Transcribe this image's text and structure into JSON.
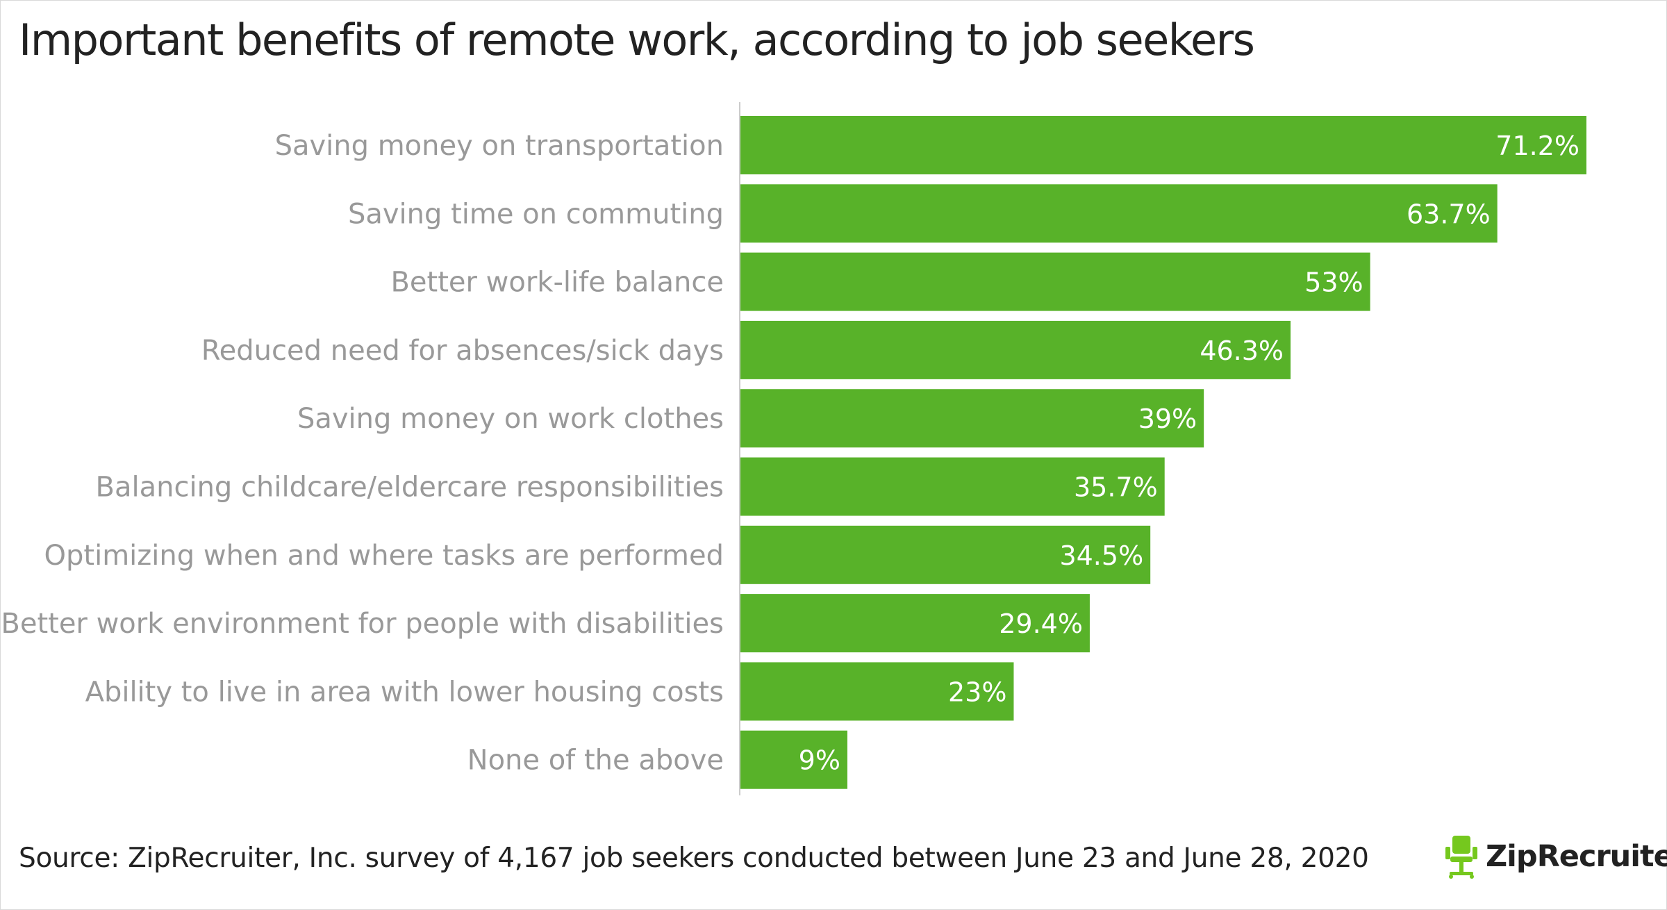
{
  "brand": {
    "name": "ZipRecruiter",
    "mark": "®",
    "icon": "ziprecruiter-chair-icon",
    "icon_color": "#75c81e"
  },
  "source": "Source: ZipRecruiter, Inc. survey of 4,167 job seekers conducted between June 23 and June 28, 2020",
  "colors": {
    "bar": "#58b229",
    "bar_label": "#ffffff",
    "category_label": "#999999",
    "axis": "#cccccc",
    "title": "#222222"
  },
  "chart_data": {
    "type": "bar",
    "orientation": "horizontal",
    "title": "Important benefits of remote work, according to job seekers",
    "xlabel": "",
    "ylabel": "",
    "xlim": [
      0,
      71.2
    ],
    "grid": false,
    "legend": "none",
    "categories": [
      "Saving money on transportation",
      "Saving time on commuting",
      "Better work-life balance",
      "Reduced need for absences/sick days",
      "Saving money on work clothes",
      "Balancing childcare/eldercare responsibilities",
      "Optimizing when and where tasks are performed",
      "Better work environment for people with disabilities",
      "Ability to live in area with lower housing costs",
      "None of the above"
    ],
    "values": [
      71.2,
      63.7,
      53,
      46.3,
      39,
      35.7,
      34.5,
      29.4,
      23,
      9
    ],
    "value_labels": [
      "71.2%",
      "63.7%",
      "53%",
      "46.3%",
      "39%",
      "35.7%",
      "34.5%",
      "29.4%",
      "23%",
      "9%"
    ]
  }
}
